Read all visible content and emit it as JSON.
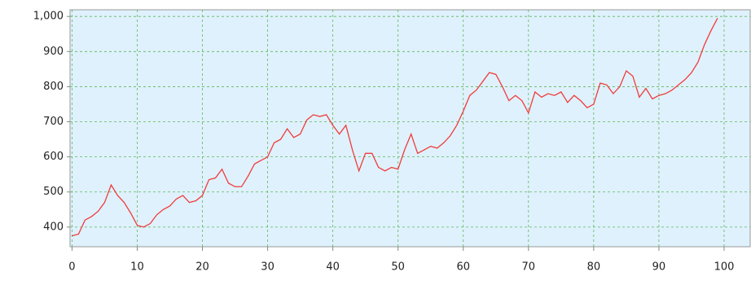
{
  "chart_data": {
    "type": "line",
    "x": [
      0,
      1,
      2,
      3,
      4,
      5,
      6,
      7,
      8,
      9,
      10,
      11,
      12,
      13,
      14,
      15,
      16,
      17,
      18,
      19,
      20,
      21,
      22,
      23,
      24,
      25,
      26,
      27,
      28,
      29,
      30,
      31,
      32,
      33,
      34,
      35,
      36,
      37,
      38,
      39,
      40,
      41,
      42,
      43,
      44,
      45,
      46,
      47,
      48,
      49,
      50,
      51,
      52,
      53,
      54,
      55,
      56,
      57,
      58,
      59,
      60,
      61,
      62,
      63,
      64,
      65,
      66,
      67,
      68,
      69,
      70,
      71,
      72,
      73,
      74,
      75,
      76,
      77,
      78,
      79,
      80,
      81,
      82,
      83,
      84,
      85,
      86,
      87,
      88,
      89,
      90,
      91,
      92,
      93,
      94,
      95,
      96,
      97,
      98,
      99
    ],
    "series": [
      {
        "color": "#f03c3c",
        "values": [
          375,
          380,
          420,
          430,
          445,
          470,
          520,
          490,
          470,
          440,
          405,
          400,
          410,
          435,
          450,
          460,
          480,
          490,
          470,
          475,
          490,
          535,
          540,
          565,
          525,
          515,
          515,
          545,
          580,
          590,
          600,
          640,
          650,
          680,
          655,
          665,
          705,
          720,
          715,
          720,
          690,
          665,
          690,
          620,
          560,
          610,
          610,
          570,
          560,
          570,
          565,
          620,
          665,
          610,
          620,
          630,
          625,
          640,
          660,
          690,
          730,
          775,
          790,
          815,
          840,
          835,
          800,
          760,
          775,
          760,
          725,
          785,
          770,
          780,
          775,
          785,
          755,
          775,
          760,
          740,
          750,
          810,
          805,
          780,
          800,
          845,
          830,
          770,
          795,
          765,
          775,
          780,
          790,
          805,
          820,
          840,
          870,
          920,
          960,
          995
        ]
      }
    ],
    "xlim": [
      -0.3,
      104
    ],
    "ylim": [
      344,
      1019
    ],
    "xticks": [
      0,
      10,
      20,
      30,
      40,
      50,
      60,
      70,
      80,
      90,
      100
    ],
    "yticks": [
      400,
      500,
      600,
      700,
      800,
      900,
      {
        "value": 1000,
        "label": "1,000"
      }
    ],
    "grid": true
  }
}
